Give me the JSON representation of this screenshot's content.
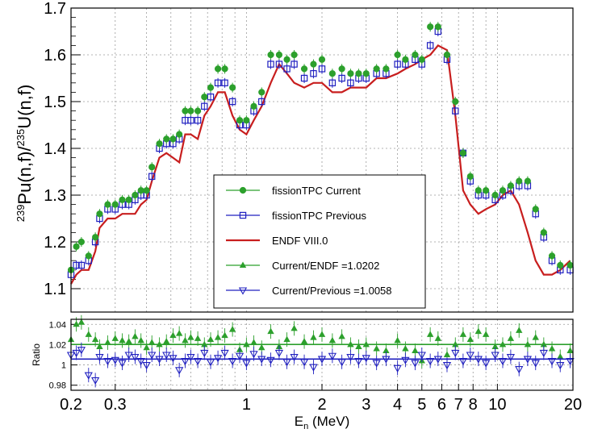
{
  "chart_data": [
    {
      "type": "scatter",
      "panel": "main",
      "xscale": "log",
      "xlim": [
        0.2,
        20
      ],
      "ylim": [
        1.05,
        1.7
      ],
      "grid": true,
      "ylabel_parts": {
        "sup1": "239",
        "mid1": "Pu(n,f)/",
        "sup2": "235",
        "mid2": "U(n,f)"
      },
      "yticks": [
        "1.1",
        "1.2",
        "1.3",
        "1.4",
        "1.5",
        "1.6",
        "1.7"
      ],
      "legend_position": "center",
      "series": [
        {
          "name": "fissionTPC Current",
          "marker": "filled-circle",
          "color": "#2ca02c",
          "x": [
            0.2,
            0.21,
            0.22,
            0.235,
            0.25,
            0.26,
            0.28,
            0.3,
            0.32,
            0.34,
            0.36,
            0.38,
            0.4,
            0.42,
            0.45,
            0.48,
            0.51,
            0.54,
            0.57,
            0.6,
            0.64,
            0.68,
            0.72,
            0.77,
            0.82,
            0.88,
            0.94,
            1.0,
            1.07,
            1.15,
            1.25,
            1.35,
            1.45,
            1.55,
            1.7,
            1.85,
            2.0,
            2.2,
            2.4,
            2.6,
            2.8,
            3.0,
            3.3,
            3.6,
            4.0,
            4.3,
            4.7,
            5.0,
            5.4,
            5.8,
            6.3,
            6.8,
            7.3,
            7.8,
            8.4,
            9.0,
            9.8,
            10.5,
            11.3,
            12.2,
            13.2,
            14.2,
            15.3,
            16.5,
            17.8,
            19.5
          ],
          "y": [
            1.14,
            1.19,
            1.2,
            1.17,
            1.21,
            1.26,
            1.28,
            1.28,
            1.29,
            1.29,
            1.3,
            1.31,
            1.31,
            1.36,
            1.41,
            1.42,
            1.42,
            1.43,
            1.48,
            1.48,
            1.48,
            1.51,
            1.53,
            1.57,
            1.57,
            1.53,
            1.46,
            1.46,
            1.49,
            1.52,
            1.6,
            1.6,
            1.59,
            1.6,
            1.57,
            1.58,
            1.59,
            1.56,
            1.57,
            1.56,
            1.56,
            1.56,
            1.57,
            1.57,
            1.6,
            1.59,
            1.6,
            1.59,
            1.66,
            1.66,
            1.6,
            1.5,
            1.39,
            1.34,
            1.31,
            1.31,
            1.3,
            1.31,
            1.32,
            1.33,
            1.33,
            1.27,
            1.22,
            1.17,
            1.15,
            1.15
          ]
        },
        {
          "name": "fissionTPC Previous",
          "marker": "open-square",
          "color": "#2020c0",
          "x": [
            0.2,
            0.21,
            0.22,
            0.235,
            0.25,
            0.26,
            0.28,
            0.3,
            0.32,
            0.34,
            0.36,
            0.38,
            0.4,
            0.42,
            0.45,
            0.48,
            0.51,
            0.54,
            0.57,
            0.6,
            0.64,
            0.68,
            0.72,
            0.77,
            0.82,
            0.88,
            0.94,
            1.0,
            1.07,
            1.15,
            1.25,
            1.35,
            1.45,
            1.55,
            1.7,
            1.85,
            2.0,
            2.2,
            2.4,
            2.6,
            2.8,
            3.0,
            3.3,
            3.6,
            4.0,
            4.3,
            4.7,
            5.0,
            5.4,
            5.8,
            6.3,
            6.8,
            7.3,
            7.8,
            8.4,
            9.0,
            9.8,
            10.5,
            11.3,
            12.2,
            13.2,
            14.2,
            15.3,
            16.5,
            17.8,
            19.5
          ],
          "y": [
            1.13,
            1.15,
            1.15,
            1.16,
            1.2,
            1.25,
            1.27,
            1.27,
            1.28,
            1.28,
            1.29,
            1.3,
            1.3,
            1.34,
            1.4,
            1.41,
            1.41,
            1.42,
            1.46,
            1.46,
            1.46,
            1.49,
            1.51,
            1.54,
            1.54,
            1.5,
            1.45,
            1.45,
            1.48,
            1.5,
            1.58,
            1.58,
            1.57,
            1.58,
            1.55,
            1.56,
            1.57,
            1.54,
            1.55,
            1.54,
            1.55,
            1.55,
            1.56,
            1.56,
            1.58,
            1.58,
            1.59,
            1.58,
            1.62,
            1.65,
            1.59,
            1.48,
            1.39,
            1.33,
            1.3,
            1.3,
            1.29,
            1.3,
            1.31,
            1.32,
            1.32,
            1.26,
            1.21,
            1.16,
            1.14,
            1.14
          ]
        },
        {
          "name": "ENDF VIII.0",
          "marker": "line",
          "color": "#c81e1e",
          "x": [
            0.2,
            0.21,
            0.22,
            0.235,
            0.25,
            0.26,
            0.28,
            0.3,
            0.32,
            0.34,
            0.36,
            0.38,
            0.4,
            0.42,
            0.45,
            0.48,
            0.51,
            0.54,
            0.57,
            0.6,
            0.64,
            0.68,
            0.72,
            0.77,
            0.82,
            0.88,
            0.94,
            1.0,
            1.07,
            1.15,
            1.25,
            1.35,
            1.45,
            1.55,
            1.7,
            1.85,
            2.0,
            2.2,
            2.4,
            2.6,
            2.8,
            3.0,
            3.3,
            3.6,
            4.0,
            4.3,
            4.7,
            5.0,
            5.4,
            5.8,
            6.3,
            6.8,
            7.3,
            7.8,
            8.4,
            9.0,
            9.8,
            10.5,
            11.3,
            12.2,
            13.2,
            14.2,
            15.3,
            16.5,
            17.8,
            19.5
          ],
          "y": [
            1.11,
            1.13,
            1.14,
            1.14,
            1.18,
            1.23,
            1.25,
            1.25,
            1.26,
            1.26,
            1.26,
            1.28,
            1.29,
            1.33,
            1.38,
            1.39,
            1.38,
            1.37,
            1.43,
            1.43,
            1.42,
            1.47,
            1.49,
            1.52,
            1.52,
            1.47,
            1.44,
            1.43,
            1.46,
            1.49,
            1.54,
            1.58,
            1.56,
            1.54,
            1.53,
            1.54,
            1.54,
            1.52,
            1.52,
            1.53,
            1.53,
            1.53,
            1.55,
            1.55,
            1.56,
            1.57,
            1.58,
            1.59,
            1.6,
            1.62,
            1.61,
            1.47,
            1.31,
            1.28,
            1.26,
            1.27,
            1.28,
            1.3,
            1.31,
            1.28,
            1.22,
            1.16,
            1.13,
            1.13,
            1.14,
            1.16
          ]
        }
      ]
    },
    {
      "type": "scatter",
      "panel": "ratio",
      "xscale": "log",
      "xlim": [
        0.2,
        20
      ],
      "ylim": [
        0.975,
        1.045
      ],
      "grid": true,
      "xlabel_parts": {
        "base": "E",
        "sub": "n",
        "rest": " (MeV)"
      },
      "ylabel": "Ratio",
      "yticks": [
        "0.98",
        "1",
        "1.02",
        "1.04"
      ],
      "xticks": [
        "0.2",
        "0.3",
        "1",
        "2",
        "3",
        "4",
        "5",
        "6",
        "7",
        "8",
        "10",
        "20"
      ],
      "series": [
        {
          "name": "Current/ENDF =1.0202",
          "marker": "filled-triangle-up",
          "color": "#2ca02c",
          "fit": 1.0202,
          "x": [
            0.2,
            0.21,
            0.22,
            0.235,
            0.25,
            0.26,
            0.28,
            0.3,
            0.32,
            0.34,
            0.36,
            0.38,
            0.4,
            0.42,
            0.45,
            0.48,
            0.51,
            0.54,
            0.57,
            0.6,
            0.64,
            0.68,
            0.72,
            0.77,
            0.82,
            0.88,
            0.94,
            1.0,
            1.07,
            1.15,
            1.25,
            1.35,
            1.45,
            1.55,
            1.7,
            1.85,
            2.0,
            2.2,
            2.4,
            2.6,
            2.8,
            3.0,
            3.3,
            3.6,
            4.0,
            4.3,
            4.7,
            5.0,
            5.4,
            5.8,
            6.3,
            6.8,
            7.3,
            7.8,
            8.4,
            9.0,
            9.8,
            10.5,
            11.3,
            12.2,
            13.2,
            14.2,
            15.3,
            16.5,
            17.8,
            19.5
          ],
          "y": [
            1.025,
            1.04,
            1.042,
            1.03,
            1.025,
            1.018,
            1.022,
            1.026,
            1.024,
            1.023,
            1.028,
            1.024,
            1.017,
            1.022,
            1.02,
            1.023,
            1.029,
            1.031,
            1.024,
            1.027,
            1.026,
            1.02,
            1.025,
            1.027,
            1.029,
            1.035,
            1.015,
            1.02,
            1.022,
            1.017,
            1.033,
            1.018,
            1.025,
            1.036,
            1.023,
            1.027,
            1.03,
            1.024,
            1.028,
            1.02,
            1.018,
            1.02,
            1.016,
            1.014,
            1.024,
            1.016,
            1.014,
            1.004,
            1.03,
            1.026,
            1.01,
            1.02,
            1.03,
            1.025,
            1.033,
            1.03,
            1.018,
            1.02,
            1.026,
            1.034,
            1.02,
            1.027,
            1.02,
            1.016,
            1.008,
            1.014
          ]
        },
        {
          "name": "Current/Previous =1.0058",
          "marker": "open-triangle-down",
          "color": "#2020c0",
          "fit": 1.0058,
          "x": [
            0.2,
            0.21,
            0.22,
            0.235,
            0.25,
            0.26,
            0.28,
            0.3,
            0.32,
            0.34,
            0.36,
            0.38,
            0.4,
            0.42,
            0.45,
            0.48,
            0.51,
            0.54,
            0.57,
            0.6,
            0.64,
            0.68,
            0.72,
            0.77,
            0.82,
            0.88,
            0.94,
            1.0,
            1.07,
            1.15,
            1.25,
            1.35,
            1.45,
            1.55,
            1.7,
            1.85,
            2.0,
            2.2,
            2.4,
            2.6,
            2.8,
            3.0,
            3.3,
            3.6,
            4.0,
            4.3,
            4.7,
            5.0,
            5.4,
            5.8,
            6.3,
            6.8,
            7.3,
            7.8,
            8.4,
            9.0,
            9.8,
            10.5,
            11.3,
            12.2,
            13.2,
            14.2,
            15.3,
            16.5,
            17.8,
            19.5
          ],
          "y": [
            1.01,
            1.012,
            1.015,
            0.99,
            0.985,
            1.008,
            1.004,
            1.005,
            1.002,
            1.01,
            1.008,
            1.004,
            1.0,
            1.01,
            1.006,
            1.01,
            1.007,
            0.995,
            1.004,
            1.008,
            1.004,
            1.012,
            1.003,
            1.007,
            1.012,
            1.004,
            1.009,
            1.002,
            1.011,
            1.006,
            1.005,
            1.012,
            1.003,
            1.008,
            1.003,
            0.998,
            1.006,
            1.009,
            1.003,
            1.008,
            1.004,
            1.007,
            1.002,
            1.006,
            0.997,
            1.005,
            1.002,
            1.01,
            1.004,
            1.006,
            1.0,
            1.012,
            1.004,
            1.01,
            1.006,
            1.002,
            1.01,
            1.004,
            1.008,
            0.996,
            1.006,
            1.002,
            1.012,
            1.004,
            1.0,
            1.004
          ]
        }
      ]
    }
  ]
}
